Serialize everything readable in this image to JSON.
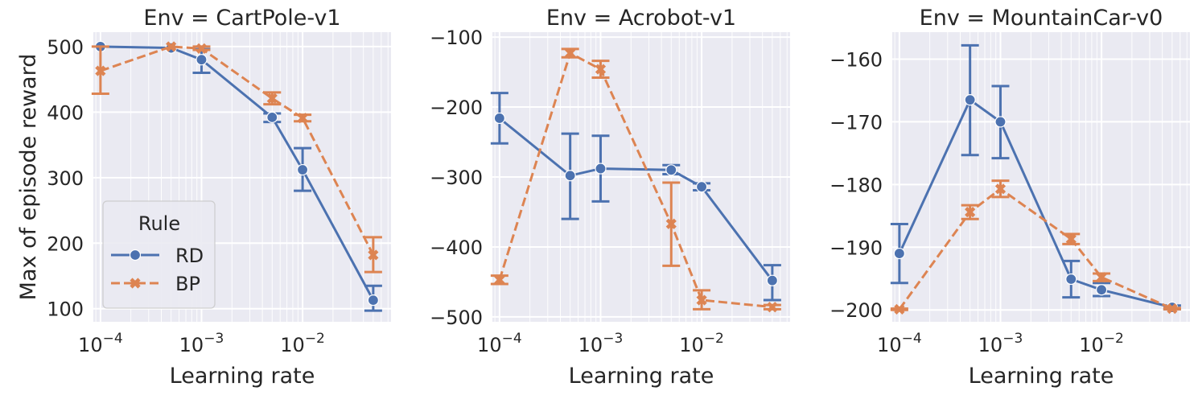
{
  "figure": {
    "ylabel": "Max of episode reward",
    "legend": {
      "title": "Rule",
      "placement": "lower-left (first panel)"
    },
    "colors": {
      "RD": "#4c72b0",
      "BP": "#dd8452",
      "panel_bg": "#eaeaf2",
      "grid": "#ffffff"
    }
  },
  "chart_data": [
    {
      "type": "line",
      "title": "Env = CartPole-v1",
      "xlabel": "Learning rate",
      "ylabel": "Max of episode reward",
      "xscale": "log",
      "xlim": [
        8.5e-05,
        0.075
      ],
      "ylim": [
        80,
        522
      ],
      "yticks": [
        100,
        200,
        300,
        400,
        500
      ],
      "xticks": [
        0.0001,
        0.001,
        0.01
      ],
      "xtick_labels": [
        {
          "base": "10",
          "exp": "−4"
        },
        {
          "base": "10",
          "exp": "−3"
        },
        {
          "base": "10",
          "exp": "−2"
        }
      ],
      "grid": true,
      "legend": true,
      "x": [
        0.0001,
        0.0005,
        0.001,
        0.005,
        0.01,
        0.05
      ],
      "series": [
        {
          "name": "RD",
          "marker": "circle",
          "dash": "solid",
          "values": [
            500,
            498,
            480,
            392,
            312,
            113
          ],
          "err_low": [
            500,
            498,
            460,
            385,
            280,
            97
          ],
          "err_high": [
            500,
            498,
            496,
            398,
            345,
            135
          ]
        },
        {
          "name": "BP",
          "marker": "x",
          "dash": "dashed",
          "values": [
            463,
            500,
            497,
            421,
            391,
            182
          ],
          "err_low": [
            428,
            500,
            495,
            412,
            386,
            156
          ],
          "err_high": [
            500,
            500,
            500,
            430,
            396,
            209
          ]
        }
      ]
    },
    {
      "type": "line",
      "title": "Env = Acrobot-v1",
      "xlabel": "Learning rate",
      "xscale": "log",
      "xlim": [
        8.5e-05,
        0.075
      ],
      "ylim": [
        -507,
        -93
      ],
      "yticks": [
        -500,
        -400,
        -300,
        -200,
        -100
      ],
      "ytick_labels": [
        "−500",
        "−400",
        "−300",
        "−200",
        "−100"
      ],
      "xticks": [
        0.0001,
        0.001,
        0.01
      ],
      "xtick_labels": [
        {
          "base": "10",
          "exp": "−4"
        },
        {
          "base": "10",
          "exp": "−3"
        },
        {
          "base": "10",
          "exp": "−2"
        }
      ],
      "grid": true,
      "legend": false,
      "x": [
        0.0001,
        0.0005,
        0.001,
        0.005,
        0.01,
        0.05
      ],
      "series": [
        {
          "name": "RD",
          "marker": "circle",
          "dash": "solid",
          "values": [
            -216,
            -298,
            -288,
            -290,
            -314,
            -448
          ],
          "err_low": [
            -252,
            -360,
            -335,
            -296,
            -319,
            -476
          ],
          "err_high": [
            -180,
            -238,
            -241,
            -283,
            -309,
            -426
          ]
        },
        {
          "name": "BP",
          "marker": "x",
          "dash": "dashed",
          "values": [
            -447,
            -123,
            -146,
            -367,
            -476,
            -486
          ],
          "err_low": [
            -453,
            -129,
            -158,
            -427,
            -489,
            -489
          ],
          "err_high": [
            -441,
            -117,
            -134,
            -308,
            -462,
            -483
          ]
        }
      ]
    },
    {
      "type": "line",
      "title": "Env = MountainCar-v0",
      "xlabel": "Learning rate",
      "xscale": "log",
      "xlim": [
        8.5e-05,
        0.075
      ],
      "ylim": [
        -201.9,
        -155.7
      ],
      "yticks": [
        -200,
        -190,
        -180,
        -170,
        -160
      ],
      "ytick_labels": [
        "−200",
        "−190",
        "−180",
        "−170",
        "−160"
      ],
      "xticks": [
        0.0001,
        0.001,
        0.01
      ],
      "xtick_labels": [
        {
          "base": "10",
          "exp": "−4"
        },
        {
          "base": "10",
          "exp": "−3"
        },
        {
          "base": "10",
          "exp": "−2"
        }
      ],
      "grid": true,
      "legend": false,
      "x": [
        0.0001,
        0.0005,
        0.001,
        0.005,
        0.01,
        0.05
      ],
      "series": [
        {
          "name": "RD",
          "marker": "circle",
          "dash": "solid",
          "values": [
            -191.0,
            -166.5,
            -170.0,
            -195.1,
            -196.8,
            -199.6
          ],
          "err_low": [
            -195.7,
            -175.3,
            -175.8,
            -198.0,
            -197.8,
            -199.9
          ],
          "err_high": [
            -186.3,
            -157.8,
            -164.3,
            -192.2,
            -195.7,
            -199.3
          ]
        },
        {
          "name": "BP",
          "marker": "x",
          "dash": "dashed",
          "values": [
            -199.9,
            -184.4,
            -180.7,
            -188.7,
            -194.8,
            -199.8
          ],
          "err_low": [
            -200.0,
            -185.5,
            -182.0,
            -189.5,
            -195.4,
            -199.9
          ],
          "err_high": [
            -199.8,
            -183.3,
            -179.4,
            -187.9,
            -194.2,
            -199.7
          ]
        }
      ]
    }
  ]
}
